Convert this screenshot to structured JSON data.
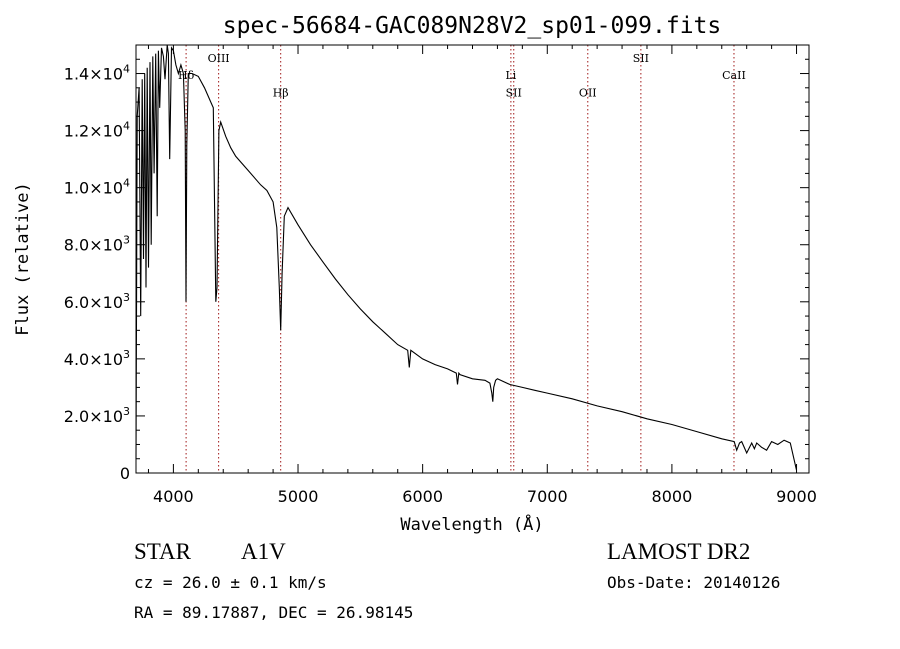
{
  "chart_data": {
    "type": "line",
    "title": "spec-56684-GAC089N28V2_sp01-099.fits",
    "xlabel": "Wavelength (Å)",
    "ylabel": "Flux (relative)",
    "xlim": [
      3700,
      9100
    ],
    "ylim": [
      0,
      15000
    ],
    "x_ticks": [
      4000,
      5000,
      6000,
      7000,
      8000,
      9000
    ],
    "x_tick_labels": [
      "4000",
      "5000",
      "6000",
      "7000",
      "8000",
      "9000"
    ],
    "y_ticks": [
      {
        "value": 0,
        "mantissa": "0",
        "exp": ""
      },
      {
        "value": 2000,
        "mantissa": "2.0×10",
        "exp": "3"
      },
      {
        "value": 4000,
        "mantissa": "4.0×10",
        "exp": "3"
      },
      {
        "value": 6000,
        "mantissa": "6.0×10",
        "exp": "3"
      },
      {
        "value": 8000,
        "mantissa": "8.0×10",
        "exp": "3"
      },
      {
        "value": 10000,
        "mantissa": "1.0×10",
        "exp": "4"
      },
      {
        "value": 12000,
        "mantissa": "1.2×10",
        "exp": "4"
      },
      {
        "value": 14000,
        "mantissa": "1.4×10",
        "exp": "4"
      }
    ],
    "line_markers": [
      {
        "x": 4102,
        "label": "Hδ",
        "label_y": 13800
      },
      {
        "x": 4363,
        "label": "OIII",
        "label_y": 14400
      },
      {
        "x": 4861,
        "label": "Hβ",
        "label_y": 13200
      },
      {
        "x": 6708,
        "label": "Li",
        "label_y": 13800
      },
      {
        "x": 6731,
        "label": "SII",
        "label_y": 13200
      },
      {
        "x": 7325,
        "label": "OII",
        "label_y": 13200
      },
      {
        "x": 7751,
        "label": "SII",
        "label_y": 14400
      },
      {
        "x": 8498,
        "label": "CaII",
        "label_y": 13800
      }
    ],
    "series": [
      {
        "x": [
          3700,
          3710,
          3725,
          3738,
          3750,
          3760,
          3770,
          3780,
          3790,
          3800,
          3812,
          3822,
          3835,
          3845,
          3858,
          3870,
          3880,
          3890,
          3905,
          3920,
          3933,
          3950,
          3960,
          3970,
          3985,
          4000,
          4020,
          4040,
          4060,
          4080,
          4095,
          4101,
          4108,
          4120,
          4150,
          4200,
          4250,
          4300,
          4320,
          4340,
          4350,
          4365,
          4380,
          4420,
          4460,
          4500,
          4600,
          4700,
          4750,
          4800,
          4830,
          4850,
          4861,
          4872,
          4890,
          4920,
          5000,
          5100,
          5200,
          5300,
          5400,
          5500,
          5600,
          5700,
          5800,
          5880,
          5893,
          5905,
          6000,
          6100,
          6200,
          6270,
          6280,
          6290,
          6300,
          6400,
          6500,
          6540,
          6555,
          6563,
          6570,
          6585,
          6600,
          6700,
          6800,
          6900,
          7000,
          7200,
          7400,
          7600,
          7800,
          8000,
          8200,
          8400,
          8500,
          8520,
          8542,
          8560,
          8600,
          8640,
          8662,
          8680,
          8720,
          8760,
          8800,
          8850,
          8900,
          8950,
          9000
        ],
        "y": [
          500,
          12500,
          13500,
          5500,
          13800,
          7500,
          14000,
          6500,
          14200,
          7200,
          14400,
          8000,
          14600,
          10500,
          14700,
          9000,
          14800,
          12800,
          14900,
          14600,
          13800,
          15000,
          14700,
          11000,
          14900,
          14800,
          14300,
          14000,
          14300,
          14000,
          12000,
          6000,
          11500,
          14000,
          14000,
          13900,
          13500,
          13000,
          12800,
          6000,
          6500,
          12000,
          12300,
          11800,
          11400,
          11100,
          10600,
          10100,
          9900,
          9500,
          8600,
          6500,
          5000,
          7000,
          9000,
          9300,
          8700,
          8000,
          7400,
          6800,
          6250,
          5750,
          5300,
          4900,
          4500,
          4300,
          3700,
          4300,
          4000,
          3800,
          3650,
          3500,
          3100,
          3500,
          3450,
          3300,
          3250,
          3150,
          2800,
          2500,
          3000,
          3250,
          3300,
          3100,
          3000,
          2900,
          2800,
          2600,
          2350,
          2150,
          1900,
          1700,
          1450,
          1200,
          1100,
          800,
          1050,
          1100,
          700,
          1050,
          850,
          1050,
          900,
          800,
          1100,
          1000,
          1150,
          1050,
          100
        ]
      }
    ]
  },
  "footer": {
    "object_class": "STAR",
    "subclass": "A1V",
    "survey": "LAMOST DR2",
    "redshift_line": "cz = 26.0 ± 0.1 km/s",
    "obs_date": "Obs-Date: 20140126",
    "coords": "RA =  89.17887, DEC =  26.98145"
  }
}
